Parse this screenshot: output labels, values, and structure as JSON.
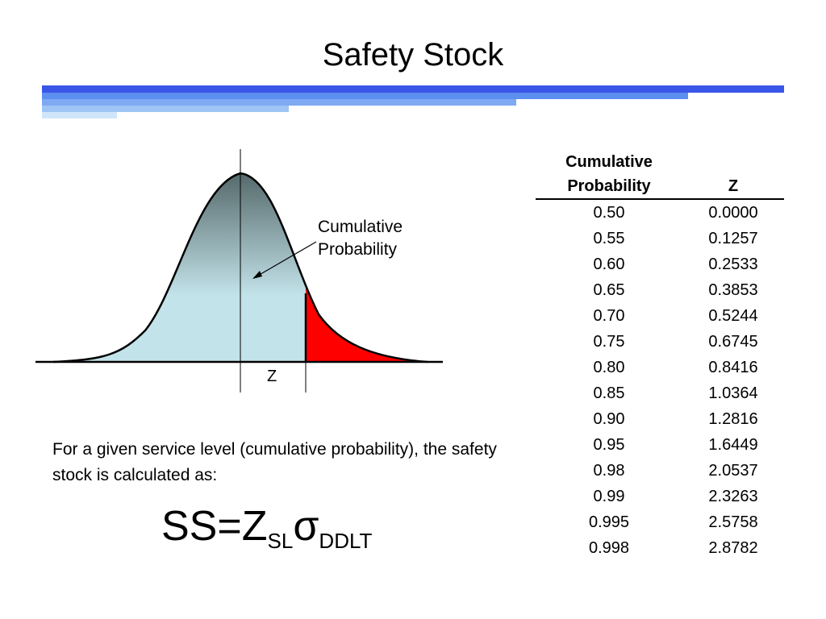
{
  "slide": {
    "title": "Safety Stock"
  },
  "diagram": {
    "callout_label": "Cumulative\nProbability",
    "z_label": "Z",
    "colors": {
      "curve_top": "#55696b",
      "curve_bottom": "#c3e3ea",
      "tail": "#ff0000",
      "header_bar_dark": "#3a56e8",
      "header_bar_mid": "#5b8ff0",
      "header_bar_light": "#9fc4f6",
      "header_bar_pale": "#cfe6fa"
    }
  },
  "description": {
    "text": "For a given service level (cumulative probability), the safety stock is calculated as:"
  },
  "formula": {
    "lhs": "SS",
    "eq": "=",
    "z": "Z",
    "z_sub": "SL",
    "sigma": "σ",
    "sigma_sub": "DDLT"
  },
  "table": {
    "headers": [
      "Cumulative Probability",
      "Z"
    ],
    "rows": [
      [
        "0.50",
        "0.0000"
      ],
      [
        "0.55",
        "0.1257"
      ],
      [
        "0.60",
        "0.2533"
      ],
      [
        "0.65",
        "0.3853"
      ],
      [
        "0.70",
        "0.5244"
      ],
      [
        "0.75",
        "0.6745"
      ],
      [
        "0.80",
        "0.8416"
      ],
      [
        "0.85",
        "1.0364"
      ],
      [
        "0.90",
        "1.2816"
      ],
      [
        "0.95",
        "1.6449"
      ],
      [
        "0.98",
        "2.0537"
      ],
      [
        "0.99",
        "2.3263"
      ],
      [
        "0.995",
        "2.5758"
      ],
      [
        "0.998",
        "2.8782"
      ]
    ]
  }
}
